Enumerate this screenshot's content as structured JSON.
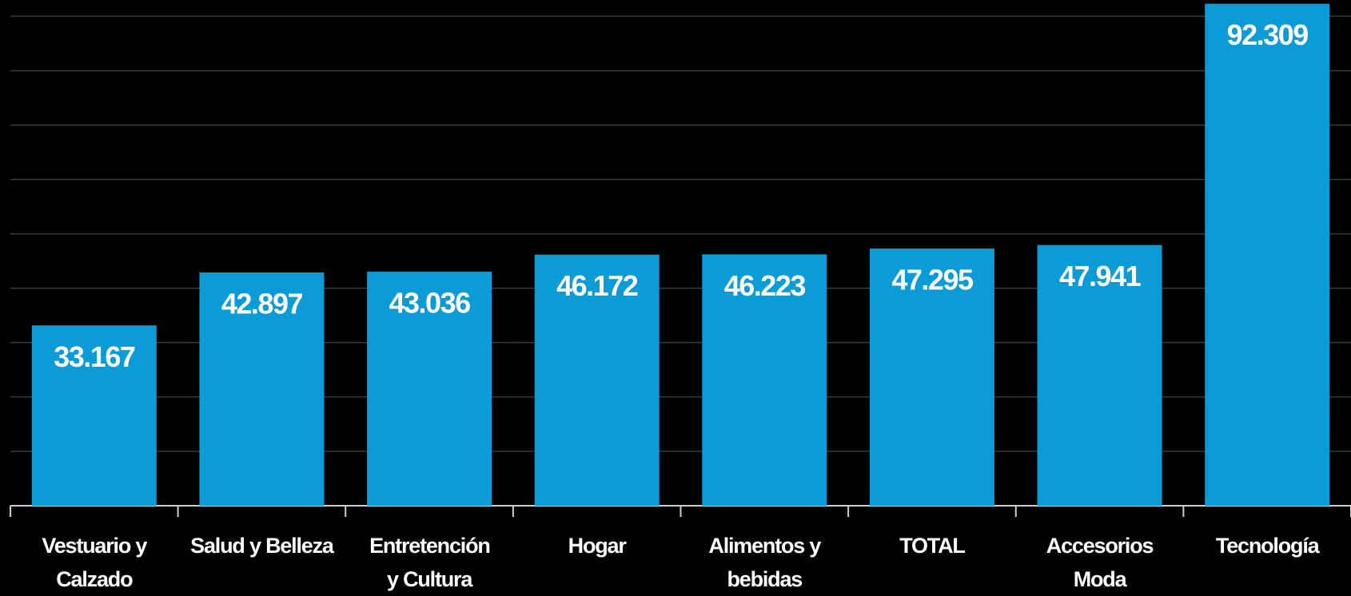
{
  "chart_data": {
    "type": "bar",
    "categories": [
      "Vestuario y Calzado",
      "Salud y Belleza",
      "Entretención y Cultura",
      "Hogar",
      "Alimentos y bebidas",
      "TOTAL",
      "Accesorios Moda",
      "Tecnología"
    ],
    "values": [
      33167,
      42897,
      43036,
      46172,
      46223,
      47295,
      47941,
      92309
    ],
    "value_labels": [
      "33.167",
      "42.897",
      "43.036",
      "46.172",
      "46.223",
      "47.295",
      "47.941",
      "92.309"
    ],
    "color": "#0b9bd7",
    "ylim": [
      0,
      93000
    ],
    "yticks": [
      0,
      10000,
      20000,
      30000,
      40000,
      50000,
      60000,
      70000,
      80000,
      90000
    ],
    "grid": true
  }
}
